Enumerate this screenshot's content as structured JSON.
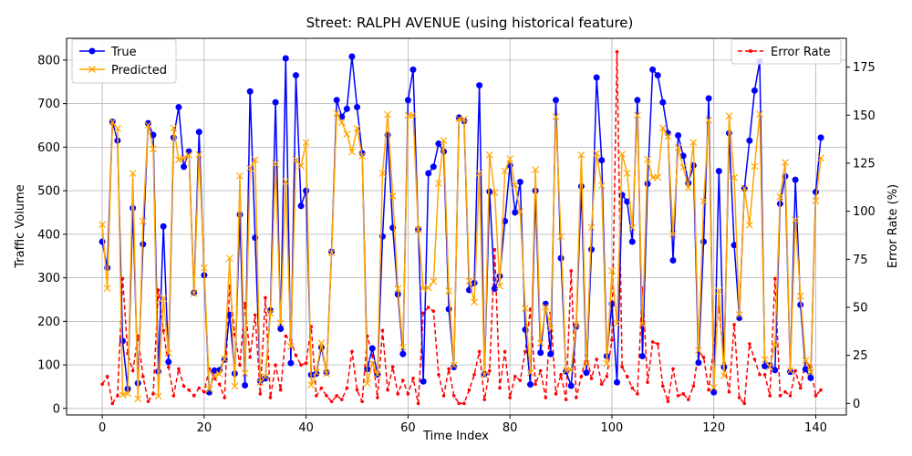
{
  "chart_data": {
    "type": "line",
    "title": "Street: RALPH AVENUE (using historical feature)",
    "xlabel": "Time Index",
    "ylabel": "Traffic Volume",
    "y2label": "Error Rate (%)",
    "xlim": [
      -7,
      146
    ],
    "ylim": [
      -15,
      850
    ],
    "y2lim": [
      -6,
      190
    ],
    "xticks": [
      0,
      20,
      40,
      60,
      80,
      100,
      120,
      140
    ],
    "yticks": [
      0,
      100,
      200,
      300,
      400,
      500,
      600,
      700,
      800
    ],
    "y2ticks": [
      0,
      25,
      50,
      75,
      100,
      125,
      150,
      175
    ],
    "grid": true,
    "legend_left_placement": "upper-left",
    "legend_right_placement": "upper-right",
    "series": [
      {
        "name": "True",
        "axis": "left",
        "color": "#0000ff",
        "marker": "circle",
        "values": [
          383,
          323,
          658,
          615,
          155,
          45,
          460,
          58,
          377,
          655,
          628,
          85,
          418,
          107,
          622,
          692,
          555,
          590,
          266,
          635,
          306,
          37,
          87,
          88,
          112,
          215,
          80,
          445,
          53,
          728,
          392,
          63,
          69,
          225,
          703,
          183,
          804,
          104,
          765,
          465,
          500,
          77,
          80,
          140,
          83,
          360,
          708,
          670,
          688,
          808,
          692,
          586,
          90,
          138,
          78,
          395,
          628,
          415,
          262,
          125,
          708,
          778,
          411,
          62,
          540,
          555,
          608,
          590,
          228,
          95,
          668,
          660,
          272,
          288,
          742,
          79,
          498,
          275,
          304,
          430,
          558,
          450,
          520,
          181,
          55,
          500,
          128,
          240,
          125,
          708,
          345,
          85,
          52,
          188,
          510,
          82,
          365,
          760,
          570,
          120,
          240,
          60,
          490,
          475,
          383,
          708,
          120,
          516,
          778,
          765,
          703,
          632,
          340,
          627,
          580,
          518,
          558,
          105,
          383,
          712,
          37,
          545,
          95,
          632,
          375,
          208,
          505,
          615,
          730,
          797,
          97,
          99,
          88,
          470,
          533,
          84,
          525,
          238,
          90,
          70,
          497,
          622
        ]
      },
      {
        "name": "Predicted",
        "axis": "left",
        "color": "#ffa500",
        "marker": "x",
        "values": [
          422,
          276,
          658,
          643,
          31,
          34,
          540,
          22,
          430,
          651,
          596,
          28,
          253,
          127,
          644,
          571,
          575,
          582,
          264,
          583,
          323,
          44,
          76,
          79,
          114,
          345,
          51,
          534,
          81,
          552,
          571,
          60,
          73,
          219,
          562,
          196,
          521,
          142,
          571,
          557,
          611,
          54,
          83,
          150,
          80,
          358,
          678,
          657,
          630,
          589,
          643,
          580,
          58,
          104,
          78,
          540,
          675,
          488,
          275,
          140,
          673,
          674,
          411,
          276,
          277,
          292,
          517,
          615,
          270,
          99,
          665,
          664,
          293,
          244,
          540,
          77,
          582,
          496,
          281,
          545,
          573,
          513,
          452,
          230,
          82,
          548,
          150,
          233,
          184,
          670,
          395,
          87,
          88,
          193,
          582,
          102,
          416,
          586,
          512,
          103,
          316,
          195,
          584,
          540,
          415,
          673,
          193,
          572,
          530,
          531,
          644,
          625,
          400,
          599,
          554,
          507,
          611,
          133,
          476,
          662,
          48,
          270,
          75,
          672,
          530,
          215,
          506,
          421,
          556,
          676,
          112,
          95,
          145,
          486,
          565,
          87,
          433,
          258,
          110,
          83,
          477,
          575
        ]
      },
      {
        "name": "Error Rate",
        "axis": "right",
        "color": "#ff0000",
        "marker": "dot",
        "values": [
          10,
          14,
          0,
          4,
          65,
          26,
          17,
          35,
          14,
          1,
          5,
          59,
          38,
          19,
          4,
          18,
          9,
          7,
          4,
          8,
          6,
          18,
          13,
          10,
          3,
          61,
          36,
          20,
          52,
          24,
          46,
          5,
          55,
          3,
          20,
          7,
          35,
          33,
          25,
          20,
          21,
          40,
          4,
          8,
          4,
          1,
          4,
          2,
          8,
          27,
          7,
          1,
          35,
          25,
          3,
          38,
          7,
          19,
          5,
          12,
          5,
          13,
          0,
          47,
          50,
          48,
          15,
          4,
          18,
          4,
          0,
          0,
          7,
          15,
          27,
          2,
          17,
          80,
          8,
          27,
          3,
          14,
          12,
          27,
          49,
          10,
          17,
          3,
          47,
          5,
          15,
          2,
          69,
          3,
          14,
          25,
          13,
          23,
          10,
          14,
          33,
          183,
          19,
          14,
          8,
          5,
          60,
          11,
          32,
          31,
          9,
          1,
          18,
          4,
          5,
          2,
          9,
          27,
          24,
          7,
          30,
          50,
          21,
          6,
          41,
          3,
          0,
          31,
          23,
          15,
          15,
          4,
          65,
          4,
          6,
          4,
          17,
          8,
          22,
          19,
          4,
          7
        ]
      }
    ]
  }
}
